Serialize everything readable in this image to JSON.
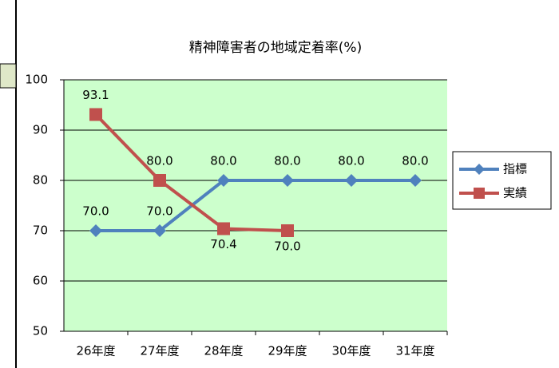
{
  "chart_data": {
    "type": "line",
    "title": "精神障害者の地域定着率(%)",
    "categories": [
      "26年度",
      "27年度",
      "28年度",
      "29年度",
      "30年度",
      "31年度"
    ],
    "series": [
      {
        "name": "指標",
        "color": "#4f81bd",
        "marker": "diamond",
        "values": [
          70,
          70,
          80,
          80,
          80,
          80
        ],
        "value_labels": [
          "70.0",
          "70.0",
          "80.0",
          "80.0",
          "80.0",
          "80.0"
        ]
      },
      {
        "name": "実績",
        "color": "#c0504d",
        "marker": "square",
        "values": [
          93.1,
          80,
          70.4,
          70,
          null,
          null
        ],
        "value_labels": [
          "93.1",
          "80.0",
          "70.4",
          "70.0",
          null,
          null
        ]
      }
    ],
    "ylim": [
      50,
      100
    ],
    "yticks": [
      50,
      60,
      70,
      80,
      90,
      100
    ],
    "grid": true,
    "legend": "right",
    "plot_background": "#ccffcc"
  }
}
